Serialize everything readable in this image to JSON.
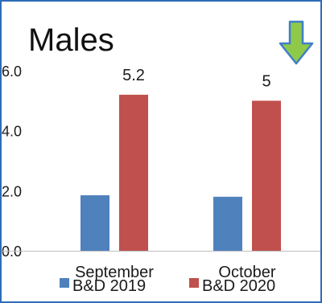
{
  "colors": {
    "frame": "#2e6cb8",
    "arrow_fill": "#8fc94a",
    "arrow_stroke": "#3f7fc8"
  },
  "icon": "down-arrow-icon",
  "chart_data": {
    "type": "bar",
    "title": "Males",
    "categories": [
      "September",
      "October"
    ],
    "series": [
      {
        "name": "B&D 2019",
        "color": "#4f81bd",
        "values": [
          1.85,
          1.8
        ],
        "labels": [
          "",
          ""
        ]
      },
      {
        "name": "B&D 2020",
        "color": "#c0504d",
        "values": [
          5.2,
          5.0
        ],
        "labels": [
          "5.2",
          "5"
        ]
      }
    ],
    "yticks": [
      "0.0",
      "2.0",
      "4.0",
      "6.0"
    ],
    "ylim": [
      0,
      6
    ],
    "grid": false,
    "legend": "bottom"
  }
}
